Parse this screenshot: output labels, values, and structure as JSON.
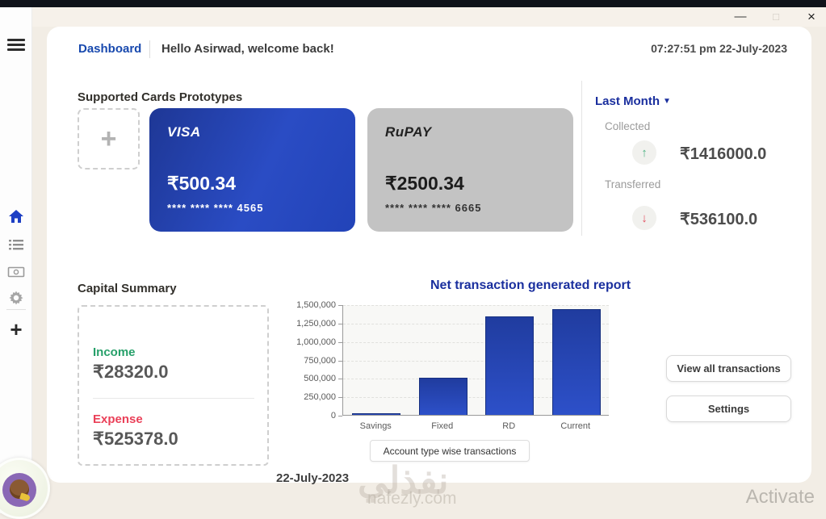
{
  "window": {
    "minimize": "—",
    "maximize": "□",
    "close": "×",
    "clock": "07:27:51 pm 22-July-2023"
  },
  "sidebar": {
    "icons": [
      "hamburger-icon",
      "home-icon",
      "list-icon",
      "banknote-icon",
      "gear-icon",
      "plus-icon"
    ],
    "plus": "+"
  },
  "header": {
    "nav": "Dashboard",
    "greeting": "Hello Asirwad, welcome back!"
  },
  "cards": {
    "section_title": "Supported Cards Prototypes",
    "add_symbol": "+",
    "items": [
      {
        "brand": "VISA",
        "balance": "₹500.34",
        "number": "**** **** **** 4565",
        "theme_color": "#2243b8"
      },
      {
        "brand": "RuPAY",
        "balance": "₹2500.34",
        "number": "**** **** **** 6665",
        "theme_color": "#c3c3c3"
      }
    ]
  },
  "summary_panel": {
    "period": "Last Month",
    "caret": "▼",
    "collected_label": "Collected",
    "collected_value": "₹1416000.0",
    "collected_arrow": "↑",
    "collected_color": "#4db383",
    "transferred_label": "Transferred",
    "transferred_value": "₹536100.0",
    "transferred_arrow": "↓",
    "transferred_color": "#e35061"
  },
  "capital": {
    "title": "Capital Summary",
    "income_label": "Income",
    "income_value": "₹28320.0",
    "income_color": "#27a06a",
    "expense_label": "Expense",
    "expense_value": "₹525378.0",
    "expense_color": "#ea4058"
  },
  "chart_data": {
    "type": "bar",
    "title": "Net transaction generated report",
    "categories": [
      "Savings",
      "Fixed",
      "RD",
      "Current"
    ],
    "values": [
      25000,
      500000,
      1340000,
      1430000
    ],
    "ylim": [
      0,
      1500000
    ],
    "yticks": [
      "0",
      "250,000",
      "500,000",
      "750,000",
      "1,000,000",
      "1,250,000",
      "1,500,000"
    ],
    "bar_color": "#2444b0",
    "grid": true,
    "legend": "Account type wise transactions",
    "legend_position": "bottom",
    "xlabel": "",
    "ylabel": ""
  },
  "chart_footer": {
    "date": "22-July-2023"
  },
  "actions": {
    "view_all": "View all transactions",
    "settings": "Settings"
  },
  "watermark": {
    "arabic": "نفذلي",
    "site": "nafezly.com",
    "activate": "Activate"
  },
  "colors": {
    "accent_blue": "#1849ae",
    "title_blue": "#1a2f9e",
    "card_blue": "#2243b8",
    "income_green": "#27a06a",
    "expense_red": "#ea4058",
    "background": "#f2ede5"
  }
}
